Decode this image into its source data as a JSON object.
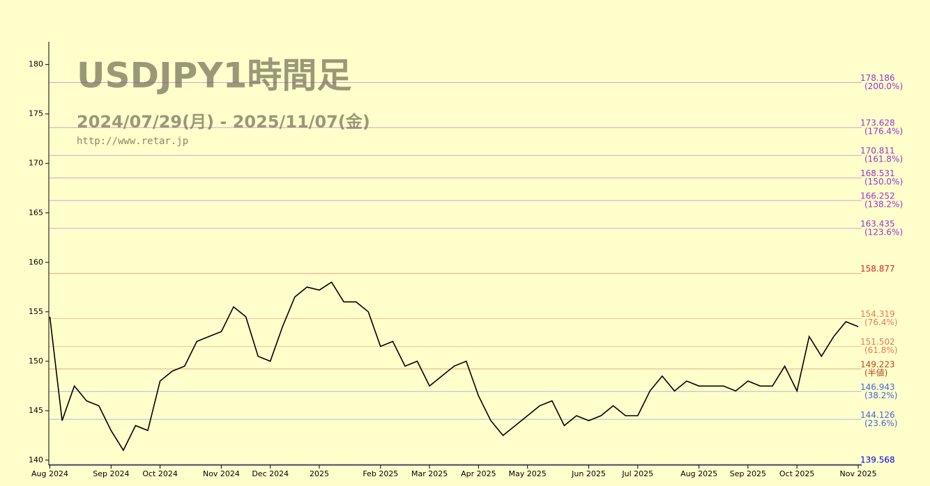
{
  "chart_data": {
    "type": "line",
    "title": "USDJPY1時間足",
    "subtitle": "2024/07/29(月) - 2025/11/07(金)",
    "source": "http://www.retar.jp",
    "categories": [
      "Aug 2024",
      null,
      null,
      null,
      null,
      "Sep 2024",
      null,
      null,
      null,
      "Oct 2024",
      null,
      null,
      null,
      null,
      "Nov 2024",
      null,
      null,
      null,
      "Dec 2024",
      null,
      null,
      null,
      "2025",
      null,
      null,
      null,
      null,
      "Feb 2025",
      null,
      null,
      null,
      "Mar 2025",
      null,
      null,
      null,
      "Apr 2025",
      null,
      null,
      null,
      "May 2025",
      null,
      null,
      null,
      null,
      "Jun 2025",
      null,
      null,
      null,
      "Jul 2025",
      null,
      null,
      null,
      null,
      "Aug 2025",
      null,
      null,
      null,
      "Sep 2025",
      null,
      null,
      null,
      "Oct 2025",
      null,
      null,
      null,
      null,
      "Nov 2025"
    ],
    "series": [
      {
        "name": "USDJPY",
        "color": "#000000",
        "values": [
          154.5,
          144,
          147.5,
          146,
          145.5,
          143,
          141,
          143.5,
          143,
          148,
          149,
          149.5,
          152,
          152.5,
          153,
          155.5,
          154.5,
          150.5,
          150,
          153.5,
          156.5,
          157.5,
          157.2,
          158,
          156,
          156,
          155,
          151.5,
          152,
          149.5,
          150,
          147.5,
          148.5,
          149.5,
          150,
          146.5,
          144,
          142.5,
          143.5,
          144.5,
          145.5,
          146,
          143.5,
          144.5,
          144,
          144.5,
          145.5,
          144.5,
          144.5,
          147,
          148.5,
          147,
          148,
          147.5,
          147.5,
          147.5,
          147,
          148,
          147.5,
          147.5,
          149.5,
          147,
          152.5,
          150.5,
          152.5,
          154,
          153.5
        ]
      }
    ],
    "levels": [
      {
        "value": 178.186,
        "pct": "(200.0%)",
        "color": "#9933cc"
      },
      {
        "value": 173.628,
        "pct": "(176.4%)",
        "color": "#9933cc"
      },
      {
        "value": 170.811,
        "pct": "(161.8%)",
        "color": "#9933cc"
      },
      {
        "value": 168.531,
        "pct": "(150.0%)",
        "color": "#9933cc"
      },
      {
        "value": 166.252,
        "pct": "(138.2%)",
        "color": "#9933cc"
      },
      {
        "value": 163.435,
        "pct": "(123.6%)",
        "color": "#9933cc"
      },
      {
        "value": 158.877,
        "color": "#dd2222"
      },
      {
        "value": 154.319,
        "pct": "(76.4%)",
        "color": "#ee7755"
      },
      {
        "value": 151.502,
        "pct": "(61.8%)",
        "color": "#ee7755"
      },
      {
        "value": 149.223,
        "pct": "(半値)",
        "color": "#bb4422"
      },
      {
        "value": 146.943,
        "pct": "(38.2%)",
        "color": "#4466dd"
      },
      {
        "value": 144.126,
        "pct": "(23.6%)",
        "color": "#4466dd"
      },
      {
        "value": 139.568,
        "color": "#0000ee"
      }
    ],
    "ylim": [
      139.5,
      182.3
    ],
    "yticks": [
      140,
      145,
      150,
      155,
      160,
      165,
      170,
      175,
      180
    ]
  }
}
